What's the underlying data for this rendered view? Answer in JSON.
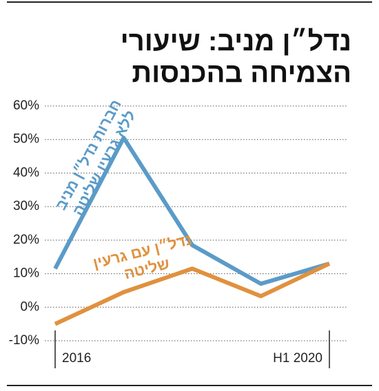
{
  "chart_data": {
    "type": "line",
    "title": [
      "נדל״ן מניב: שיעורי",
      "הצמיחה בהכנסות"
    ],
    "categories": [
      "2016",
      null,
      null,
      null,
      "H1 2020"
    ],
    "series": [
      {
        "name": "חברות נדל״ן מניב ללא גרעין שליטה",
        "color": "#5b9bc8",
        "values": [
          11.5,
          50.5,
          18.5,
          7,
          13
        ]
      },
      {
        "name": "נדל״ן עם גרעין שליטה",
        "color": "#e0913e",
        "values": [
          -5,
          4.5,
          11.5,
          3.3,
          13
        ]
      }
    ],
    "ylim": [
      -10,
      60
    ],
    "yticks": [
      {
        "value": -10,
        "label": "-10%"
      },
      {
        "value": 0,
        "label": "0%"
      },
      {
        "value": 10,
        "label": "10%"
      },
      {
        "value": 20,
        "label": "20%"
      },
      {
        "value": 30,
        "label": "30%"
      },
      {
        "value": 40,
        "label": "40%"
      },
      {
        "value": 50,
        "label": "50%"
      },
      {
        "value": 60,
        "label": "60%"
      }
    ],
    "grid": true
  }
}
